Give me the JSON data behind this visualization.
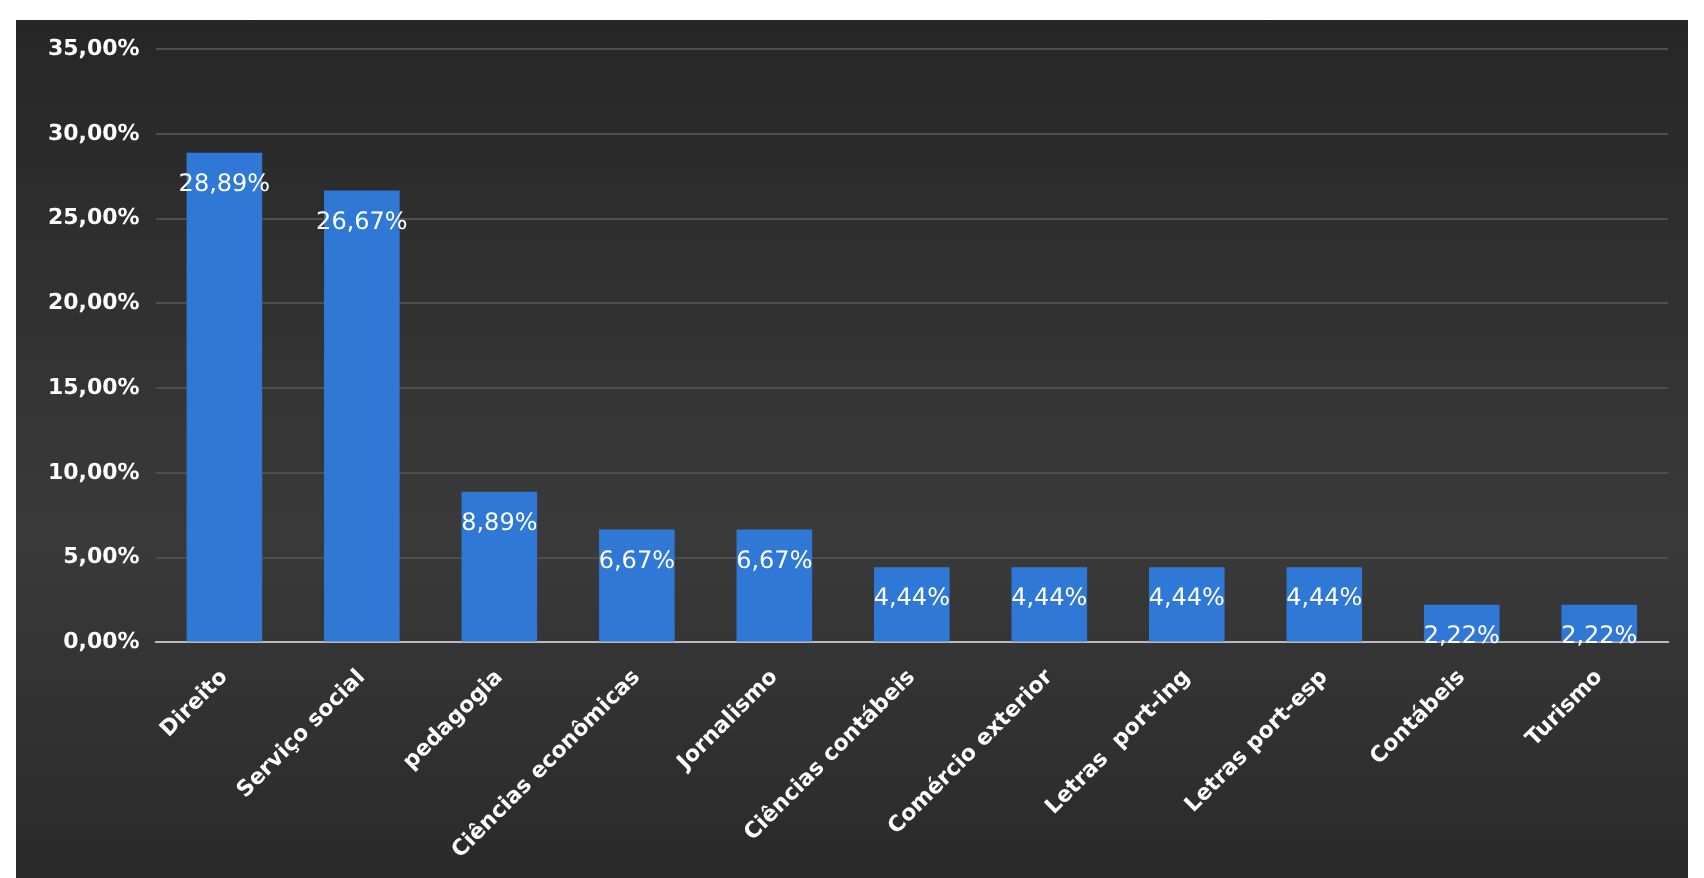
{
  "chart_data": {
    "type": "bar",
    "categories": [
      "Direito",
      "Serviço social",
      "pedagogia",
      "Ciências econômicas",
      "Jornalismo",
      "Ciências contábeis",
      "Comércio exterior",
      "Letras  port-ing",
      "Letras port-esp",
      "Contábeis",
      "Turismo"
    ],
    "values": [
      28.89,
      26.67,
      8.89,
      6.67,
      6.67,
      4.44,
      4.44,
      4.44,
      4.44,
      2.22,
      2.22
    ],
    "value_labels": [
      "28,89%",
      "26,67%",
      "8,89%",
      "6,67%",
      "6,67%",
      "4,44%",
      "4,44%",
      "4,44%",
      "4,44%",
      "2,22%",
      "2,22%"
    ],
    "color": "#2f78d6",
    "ylim": [
      0,
      35
    ],
    "yticks": [
      {
        "value": 0,
        "label": "0,00%"
      },
      {
        "value": 5,
        "label": "5,00%"
      },
      {
        "value": 10,
        "label": "10,00%"
      },
      {
        "value": 15,
        "label": "15,00%"
      },
      {
        "value": 20,
        "label": "20,00%"
      },
      {
        "value": 25,
        "label": "25,00%"
      },
      {
        "value": 30,
        "label": "30,00%"
      },
      {
        "value": 35,
        "label": "35,00%"
      }
    ],
    "grid": "y"
  }
}
